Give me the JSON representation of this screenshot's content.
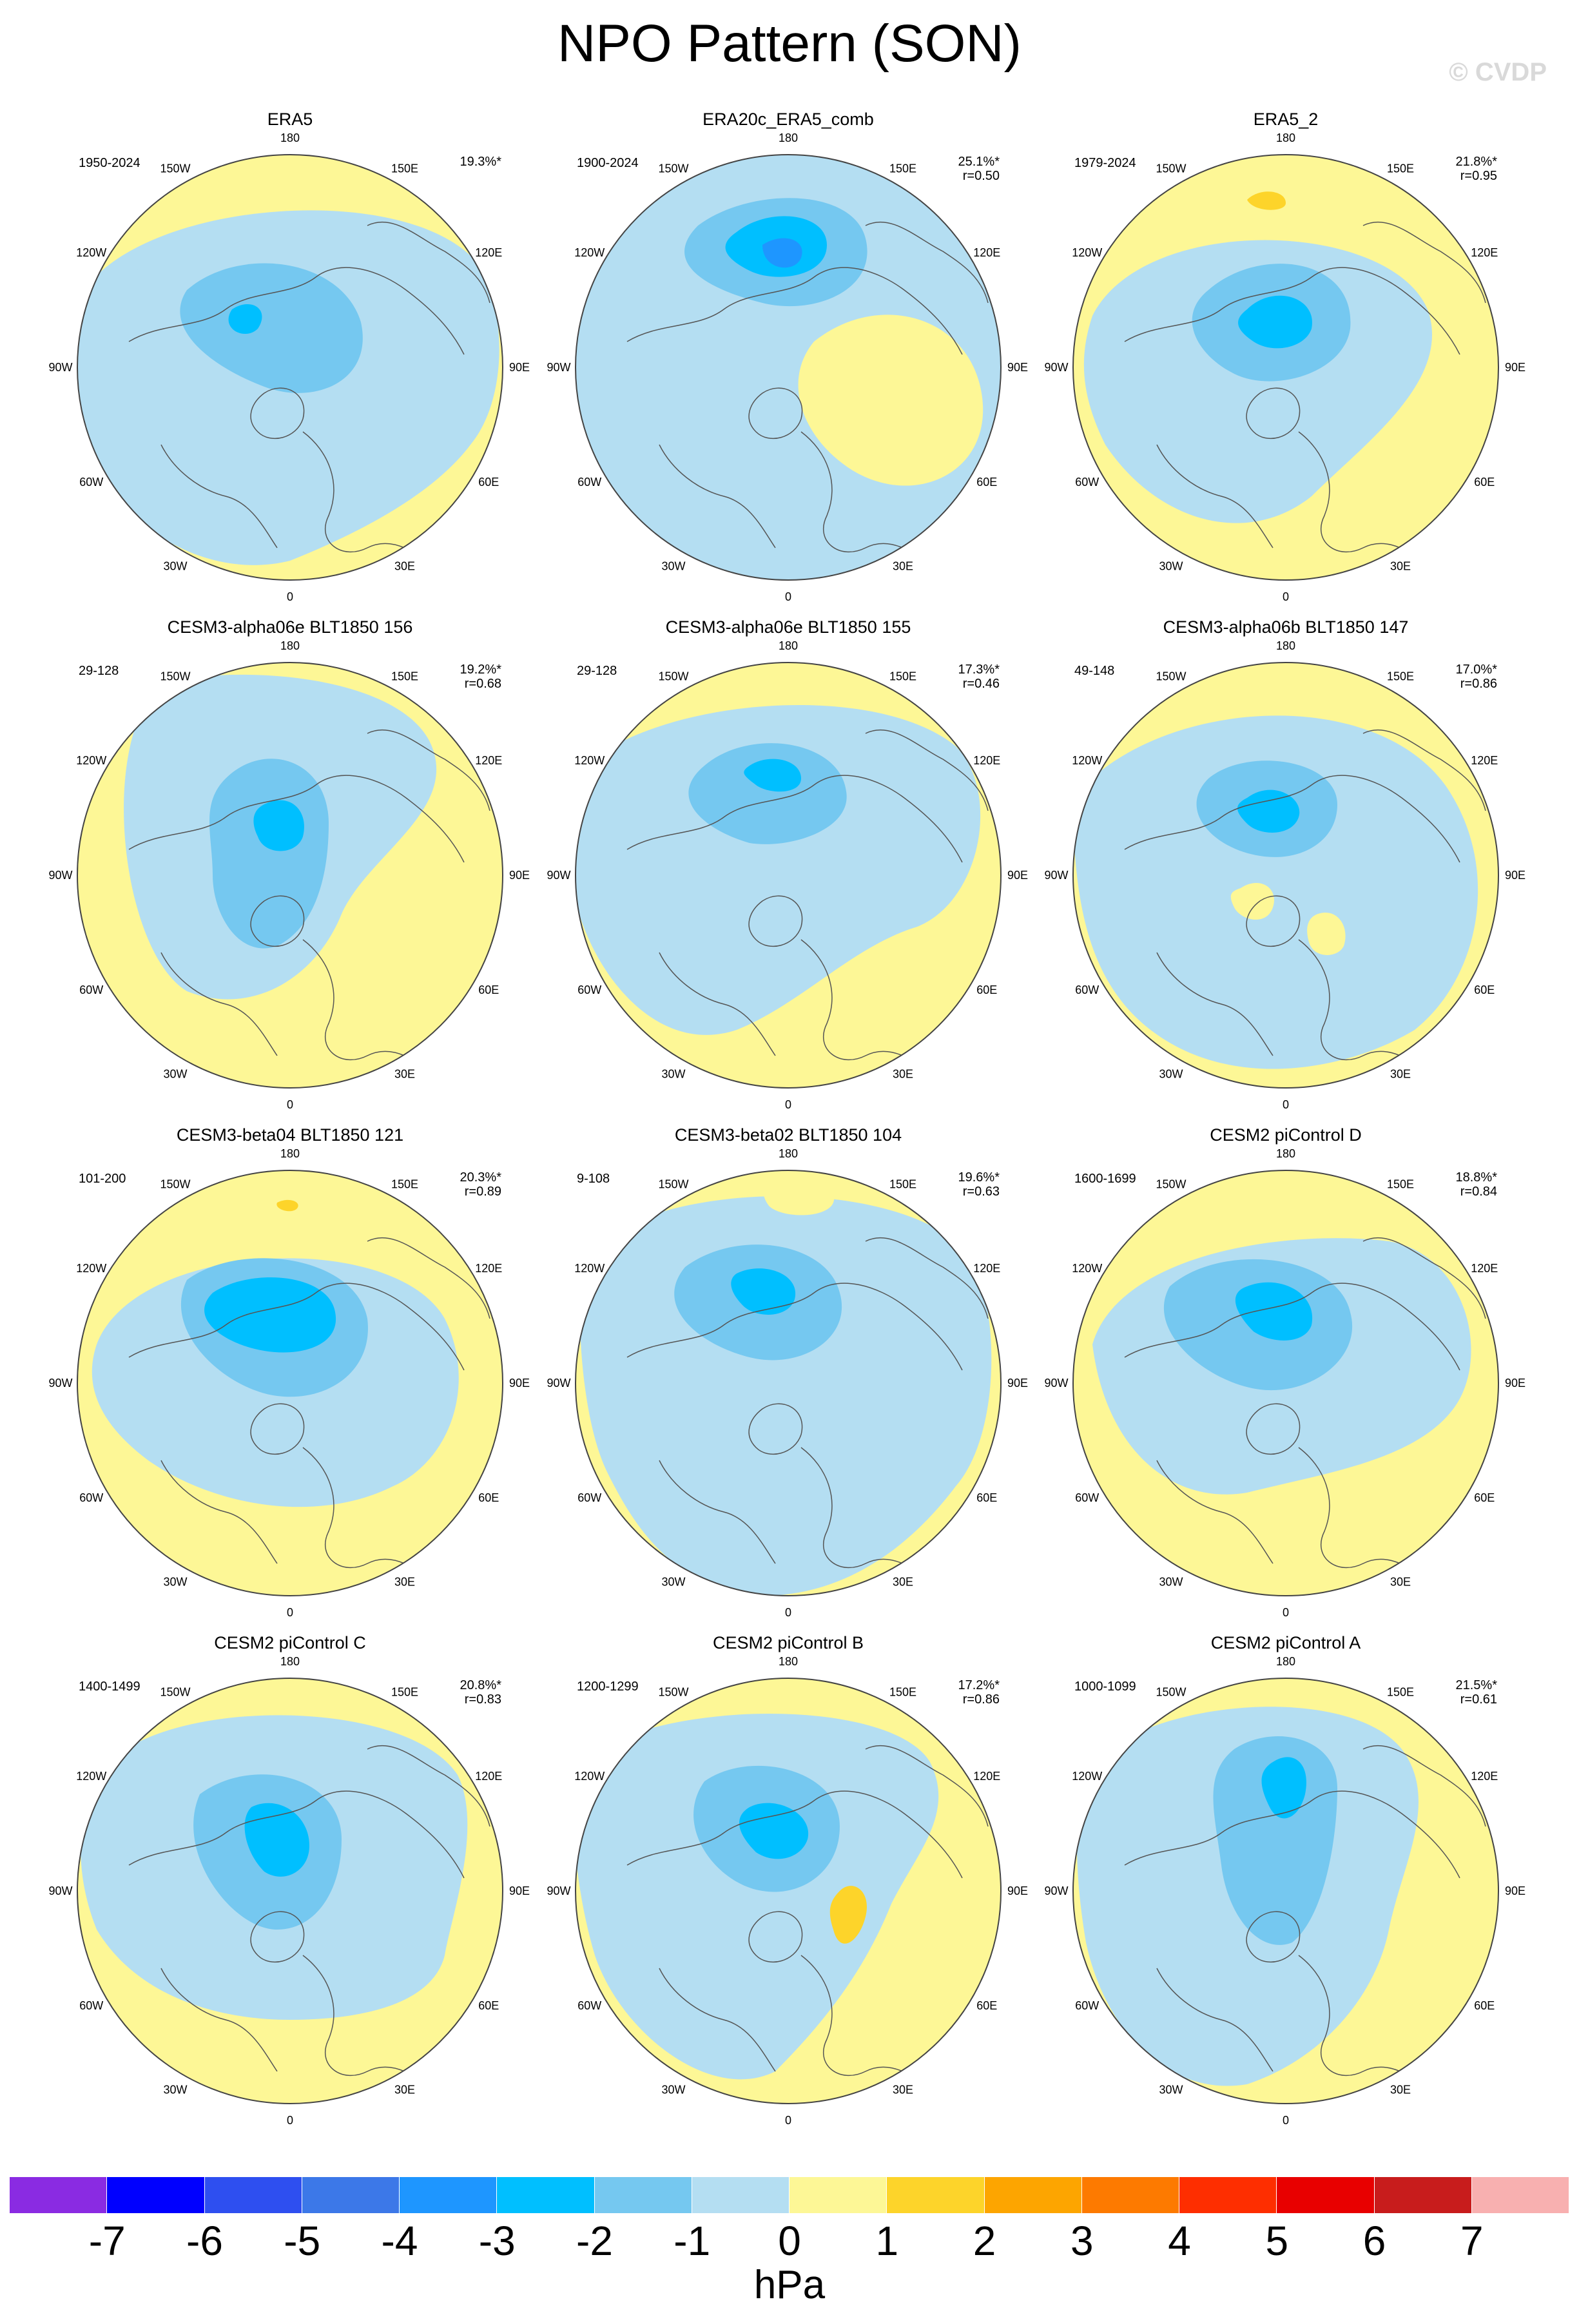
{
  "figure": {
    "title": "NPO Pattern (SON)",
    "watermark": "© CVDP",
    "units": "hPa"
  },
  "panels": [
    {
      "title": "ERA5",
      "period": "1950-2024",
      "pct": "19.3%*",
      "r": ""
    },
    {
      "title": "ERA20c_ERA5_comb",
      "period": "1900-2024",
      "pct": "25.1%*",
      "r": "r=0.50"
    },
    {
      "title": "ERA5_2",
      "period": "1979-2024",
      "pct": "21.8%*",
      "r": "r=0.95"
    },
    {
      "title": "CESM3-alpha06e BLT1850 156",
      "period": "29-128",
      "pct": "19.2%*",
      "r": "r=0.68"
    },
    {
      "title": "CESM3-alpha06e BLT1850 155",
      "period": "29-128",
      "pct": "17.3%*",
      "r": "r=0.46"
    },
    {
      "title": "CESM3-alpha06b BLT1850 147",
      "period": "49-148",
      "pct": "17.0%*",
      "r": "r=0.86"
    },
    {
      "title": "CESM3-beta04 BLT1850 121",
      "period": "101-200",
      "pct": "20.3%*",
      "r": "r=0.89"
    },
    {
      "title": "CESM3-beta02 BLT1850 104",
      "period": "9-108",
      "pct": "19.6%*",
      "r": "r=0.63"
    },
    {
      "title": "CESM2 piControl D",
      "period": "1600-1699",
      "pct": "18.8%*",
      "r": "r=0.84"
    },
    {
      "title": "CESM2 piControl C",
      "period": "1400-1499",
      "pct": "20.8%*",
      "r": "r=0.83"
    },
    {
      "title": "CESM2 piControl B",
      "period": "1200-1299",
      "pct": "17.2%*",
      "r": "r=0.86"
    },
    {
      "title": "CESM2 piControl A",
      "period": "1000-1099",
      "pct": "21.5%*",
      "r": "r=0.61"
    }
  ],
  "lon_labels": [
    "180",
    "150E",
    "120E",
    "90E",
    "60E",
    "30E",
    "0",
    "30W",
    "60W",
    "90W",
    "120W",
    "150W"
  ],
  "colorbar": {
    "colors": [
      "#8a2be2",
      "#0000ff",
      "#2e4ff0",
      "#3c78e8",
      "#1e96ff",
      "#00bfff",
      "#75c8f0",
      "#b4def2",
      "#fdf796",
      "#fdd42a",
      "#fda500",
      "#fd7a00",
      "#fe2e00",
      "#e80000",
      "#c81c1c",
      "#f8b0b0"
    ],
    "ticks": [
      "-7",
      "-6",
      "-5",
      "-4",
      "-3",
      "-2",
      "-1",
      "0",
      "1",
      "2",
      "3",
      "4",
      "5",
      "6",
      "7"
    ]
  },
  "fill_colors": {
    "positive_weak": "#fdf796",
    "positive_mod": "#fdd42a",
    "negative_weak": "#b4def2",
    "negative_mod": "#75c8f0",
    "negative_strong": "#00bfff",
    "negative_very_strong": "#1e96ff"
  }
}
